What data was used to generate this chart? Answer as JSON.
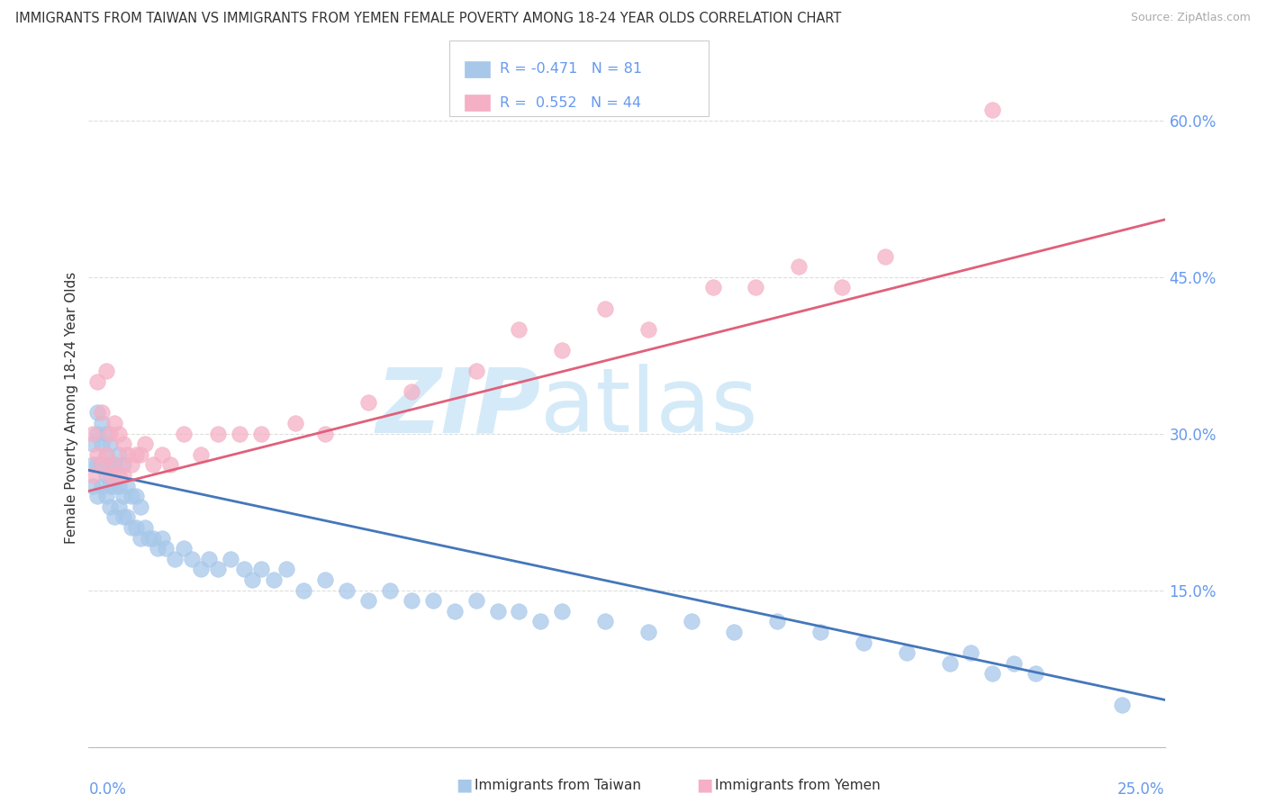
{
  "title": "IMMIGRANTS FROM TAIWAN VS IMMIGRANTS FROM YEMEN FEMALE POVERTY AMONG 18-24 YEAR OLDS CORRELATION CHART",
  "source": "Source: ZipAtlas.com",
  "ylabel": "Female Poverty Among 18-24 Year Olds",
  "taiwan_R": -0.471,
  "taiwan_N": 81,
  "yemen_R": 0.552,
  "yemen_N": 44,
  "taiwan_color": "#a8c8ea",
  "yemen_color": "#f5b0c5",
  "taiwan_line_color": "#4477bb",
  "yemen_line_color": "#e0607a",
  "watermark_color": "#d4eaf8",
  "background_color": "#ffffff",
  "grid_color": "#dddddd",
  "axis_label_color": "#6699ee",
  "text_color": "#333333",
  "x_min": 0.0,
  "x_max": 0.25,
  "y_min": 0.0,
  "y_max": 0.65,
  "ytick_vals": [
    0.15,
    0.3,
    0.45,
    0.6
  ],
  "taiwan_scatter_x": [
    0.001,
    0.001,
    0.001,
    0.002,
    0.002,
    0.002,
    0.002,
    0.003,
    0.003,
    0.003,
    0.003,
    0.004,
    0.004,
    0.004,
    0.004,
    0.005,
    0.005,
    0.005,
    0.005,
    0.006,
    0.006,
    0.006,
    0.007,
    0.007,
    0.007,
    0.008,
    0.008,
    0.008,
    0.009,
    0.009,
    0.01,
    0.01,
    0.011,
    0.011,
    0.012,
    0.012,
    0.013,
    0.014,
    0.015,
    0.016,
    0.017,
    0.018,
    0.02,
    0.022,
    0.024,
    0.026,
    0.028,
    0.03,
    0.033,
    0.036,
    0.038,
    0.04,
    0.043,
    0.046,
    0.05,
    0.055,
    0.06,
    0.065,
    0.07,
    0.075,
    0.08,
    0.085,
    0.09,
    0.095,
    0.1,
    0.105,
    0.11,
    0.12,
    0.13,
    0.14,
    0.15,
    0.16,
    0.17,
    0.18,
    0.19,
    0.2,
    0.205,
    0.21,
    0.215,
    0.22,
    0.24
  ],
  "taiwan_scatter_y": [
    0.25,
    0.27,
    0.29,
    0.24,
    0.27,
    0.3,
    0.32,
    0.25,
    0.27,
    0.29,
    0.31,
    0.24,
    0.26,
    0.28,
    0.3,
    0.23,
    0.25,
    0.27,
    0.29,
    0.22,
    0.25,
    0.27,
    0.23,
    0.25,
    0.28,
    0.22,
    0.24,
    0.27,
    0.22,
    0.25,
    0.21,
    0.24,
    0.21,
    0.24,
    0.2,
    0.23,
    0.21,
    0.2,
    0.2,
    0.19,
    0.2,
    0.19,
    0.18,
    0.19,
    0.18,
    0.17,
    0.18,
    0.17,
    0.18,
    0.17,
    0.16,
    0.17,
    0.16,
    0.17,
    0.15,
    0.16,
    0.15,
    0.14,
    0.15,
    0.14,
    0.14,
    0.13,
    0.14,
    0.13,
    0.13,
    0.12,
    0.13,
    0.12,
    0.11,
    0.12,
    0.11,
    0.12,
    0.11,
    0.1,
    0.09,
    0.08,
    0.09,
    0.07,
    0.08,
    0.07,
    0.04
  ],
  "yemen_scatter_x": [
    0.001,
    0.001,
    0.002,
    0.002,
    0.003,
    0.003,
    0.004,
    0.004,
    0.005,
    0.005,
    0.006,
    0.006,
    0.007,
    0.007,
    0.008,
    0.008,
    0.009,
    0.01,
    0.011,
    0.012,
    0.013,
    0.015,
    0.017,
    0.019,
    0.022,
    0.026,
    0.03,
    0.035,
    0.04,
    0.048,
    0.055,
    0.065,
    0.075,
    0.09,
    0.1,
    0.11,
    0.12,
    0.13,
    0.145,
    0.155,
    0.165,
    0.175,
    0.185,
    0.21
  ],
  "yemen_scatter_y": [
    0.26,
    0.3,
    0.28,
    0.35,
    0.27,
    0.32,
    0.28,
    0.36,
    0.26,
    0.3,
    0.27,
    0.31,
    0.26,
    0.3,
    0.26,
    0.29,
    0.28,
    0.27,
    0.28,
    0.28,
    0.29,
    0.27,
    0.28,
    0.27,
    0.3,
    0.28,
    0.3,
    0.3,
    0.3,
    0.31,
    0.3,
    0.33,
    0.34,
    0.36,
    0.4,
    0.38,
    0.42,
    0.4,
    0.44,
    0.44,
    0.46,
    0.44,
    0.47,
    0.61
  ],
  "taiwan_trend_x0": 0.0,
  "taiwan_trend_y0": 0.265,
  "taiwan_trend_x1": 0.25,
  "taiwan_trend_y1": 0.045,
  "yemen_trend_x0": 0.0,
  "yemen_trend_y0": 0.245,
  "yemen_trend_x1": 0.25,
  "yemen_trend_y1": 0.505
}
